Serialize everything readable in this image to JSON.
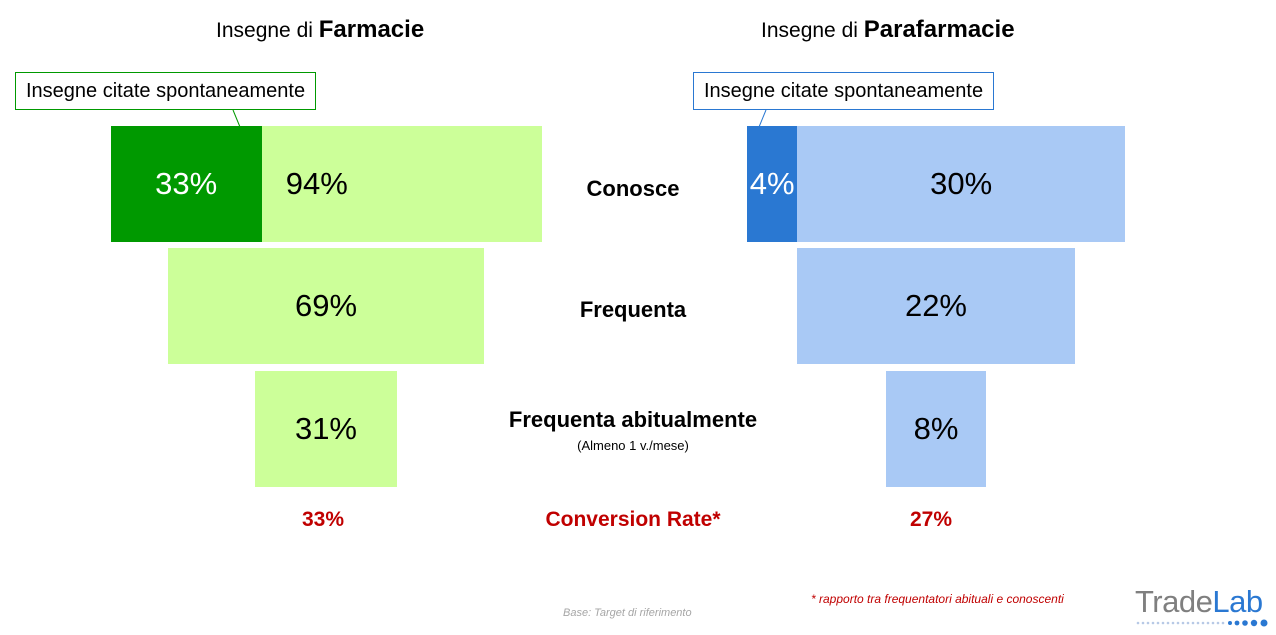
{
  "left_title": {
    "prefix": "Insegne di",
    "bold": "Farmacie"
  },
  "right_title": {
    "prefix": "Insegne di",
    "bold": "Parafarmacie"
  },
  "left_callout": "Insegne citate spontaneamente",
  "right_callout": "Insegne citate spontaneamente",
  "stages": [
    {
      "label": "Conosce",
      "sub": ""
    },
    {
      "label": "Frequenta",
      "sub": ""
    },
    {
      "label": "Frequenta abitualmente",
      "sub": "(Almeno 1 v./mese)"
    }
  ],
  "conversion_label": "Conversion Rate*",
  "footnote": "* rapporto tra frequentatori abituali e conoscenti",
  "base_note": "Base: Target di riferimento",
  "logo": {
    "trade": "Trade",
    "lab": "Lab"
  },
  "colors": {
    "farmacie_light": "#ccff99",
    "farmacie_dark": "#009900",
    "parafarmacie_light": "#a9c9f5",
    "parafarmacie_dark": "#2a78d2",
    "conversion_red": "#c00000",
    "logo_gray": "#7f7f7f",
    "logo_blue": "#2a78d2"
  },
  "chart_data": [
    {
      "type": "bar",
      "title": "Insegne di Farmacie",
      "categories": [
        "Conosce",
        "Frequenta",
        "Frequenta abitualmente"
      ],
      "values": [
        94,
        69,
        31
      ],
      "value_labels": [
        "94%",
        "69%",
        "31%"
      ],
      "spontaneous": {
        "name": "Insegne citate spontaneamente",
        "value": 33,
        "label": "33%"
      },
      "conversion_rate": {
        "value": 33,
        "label": "33%"
      }
    },
    {
      "type": "bar",
      "title": "Insegne di Parafarmacie",
      "categories": [
        "Conosce",
        "Frequenta",
        "Frequenta abitualmente"
      ],
      "values": [
        30,
        22,
        8
      ],
      "value_labels": [
        "30%",
        "22%",
        "8%"
      ],
      "spontaneous": {
        "name": "Insegne citate spontaneamente",
        "value": 4,
        "label": "4%"
      },
      "conversion_rate": {
        "value": 27,
        "label": "27%"
      }
    }
  ]
}
